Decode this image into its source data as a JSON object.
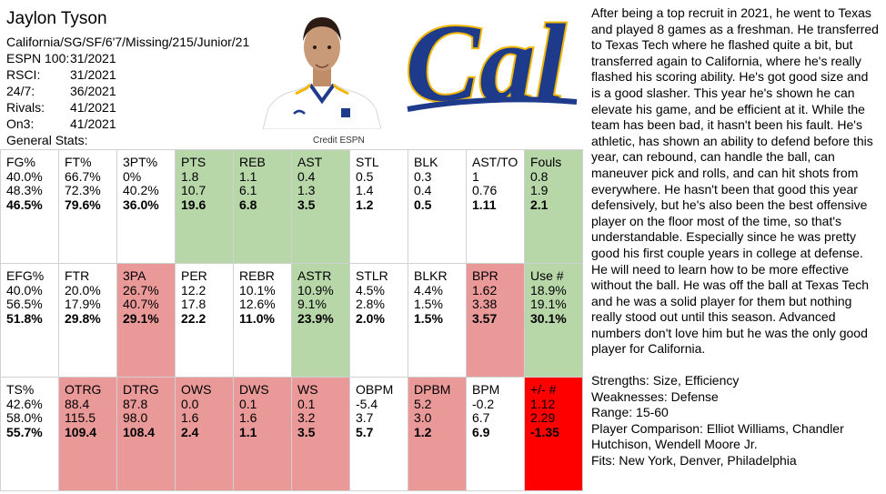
{
  "player": {
    "name": "Jaylon Tyson",
    "info_line": "California/SG/SF/6'7/Missing/215/Junior/21",
    "rankings": [
      {
        "label": "ESPN 100:",
        "value": "31/2021"
      },
      {
        "label": "RSCI:",
        "value": "31/2021"
      },
      {
        "label": "24/7:",
        "value": "36/2021"
      },
      {
        "label": "Rivals:",
        "value": "41/2021"
      },
      {
        "label": "On3:",
        "value": "41/2021"
      }
    ],
    "general_stats_label": "General Stats:",
    "photo_credit": "Credit ESPN"
  },
  "stats": [
    [
      {
        "label": "FG%",
        "values": [
          "40.0%",
          "48.3%",
          "46.5%"
        ],
        "color": "white"
      },
      {
        "label": "FT%",
        "values": [
          "66.7%",
          "72.3%",
          "79.6%"
        ],
        "color": "white"
      },
      {
        "label": "3PT%",
        "values": [
          "0%",
          "40.2%",
          "36.0%"
        ],
        "color": "white"
      },
      {
        "label": "PTS",
        "values": [
          "1.8",
          "10.7",
          "19.6"
        ],
        "color": "green"
      },
      {
        "label": "REB",
        "values": [
          "1.1",
          "6.1",
          "6.8"
        ],
        "color": "green"
      },
      {
        "label": "AST",
        "values": [
          "0.4",
          "1.3",
          "3.5"
        ],
        "color": "green"
      },
      {
        "label": "STL",
        "values": [
          "0.5",
          "1.4",
          "1.2"
        ],
        "color": "white"
      },
      {
        "label": "BLK",
        "values": [
          "0.3",
          "0.4",
          "0.5"
        ],
        "color": "white"
      },
      {
        "label": "AST/TO",
        "values": [
          "1",
          "0.76",
          "1.11"
        ],
        "color": "white"
      },
      {
        "label": "Fouls",
        "values": [
          "0.8",
          "1.9",
          "2.1"
        ],
        "color": "green"
      }
    ],
    [
      {
        "label": "EFG%",
        "values": [
          "40.0%",
          "56.5%",
          "51.8%"
        ],
        "color": "white"
      },
      {
        "label": "FTR",
        "values": [
          "20.0%",
          "17.9%",
          "29.8%"
        ],
        "color": "white"
      },
      {
        "label": "3PA",
        "values": [
          "26.7%",
          "40.7%",
          "29.1%"
        ],
        "color": "red"
      },
      {
        "label": "PER",
        "values": [
          "12.2",
          "17.8",
          "22.2"
        ],
        "color": "white"
      },
      {
        "label": "REBR",
        "values": [
          "10.1%",
          "12.6%",
          "11.0%"
        ],
        "color": "white"
      },
      {
        "label": "ASTR",
        "values": [
          "10.9%",
          "9.1%",
          "23.9%"
        ],
        "color": "green"
      },
      {
        "label": "STLR",
        "values": [
          "4.5%",
          "2.8%",
          "2.0%"
        ],
        "color": "white"
      },
      {
        "label": "BLKR",
        "values": [
          "4.4%",
          "1.5%",
          "1.5%"
        ],
        "color": "white"
      },
      {
        "label": "BPR",
        "values": [
          "1.62",
          "3.38",
          "3.57"
        ],
        "color": "red"
      },
      {
        "label": "Use #",
        "values": [
          "18.9%",
          "19.1%",
          "30.1%"
        ],
        "color": "green"
      }
    ],
    [
      {
        "label": "TS%",
        "values": [
          "42.6%",
          "58.0%",
          "55.7%"
        ],
        "color": "white"
      },
      {
        "label": "OTRG",
        "values": [
          "88.4",
          "115.5",
          "109.4"
        ],
        "color": "red"
      },
      {
        "label": "DTRG",
        "values": [
          "87.8",
          "98.0",
          "108.4"
        ],
        "color": "red"
      },
      {
        "label": "OWS",
        "values": [
          "0.0",
          "1.6",
          "2.4"
        ],
        "color": "red"
      },
      {
        "label": "DWS",
        "values": [
          "0.1",
          "1.6",
          "1.1"
        ],
        "color": "red"
      },
      {
        "label": "WS",
        "values": [
          "0.1",
          "3.2",
          "3.5"
        ],
        "color": "red"
      },
      {
        "label": "OBPM",
        "values": [
          "-5.4",
          "3.7",
          "5.7"
        ],
        "color": "white"
      },
      {
        "label": "DPBM",
        "values": [
          "5.2",
          "3.0",
          "1.2"
        ],
        "color": "red"
      },
      {
        "label": "BPM",
        "values": [
          "-0.2",
          "6.7",
          "6.9"
        ],
        "color": "white"
      },
      {
        "label": "+/- #",
        "values": [
          "1.12",
          "2.29",
          "-1.35"
        ],
        "color": "bright"
      }
    ]
  ],
  "bio": "After being a top recruit in 2021, he went to Texas and played 8 games as a freshman. He transferred to Texas Tech where he flashed quite a bit, but transferred again to California, where he's really flashed his scoring ability. He's got good size and is a good slasher. This year he's shown he can elevate his game, and be efficient at it. While the team has been bad, it hasn't been his fault. He's athletic, has shown an ability to defend before this year, can rebound, can handle the ball, can maneuver pick and rolls, and can hit shots from everywhere. He hasn't been that good this year defensively, but he's also been the best offensive player on the floor most of the time, so that's understandable. Especially since he was pretty good his first couple years in college at defense. He will need to learn how to be more effective without the ball. He was off the ball at Texas Tech and he was a solid player for them but nothing really stood out until this season. Advanced numbers don't love him but he was the only good player for California.",
  "summary": {
    "strengths": "Strengths: Size, Efficiency",
    "weaknesses": "Weaknesses: Defense",
    "range": "Range: 15-60",
    "comparison": "Player Comparison: Elliot Williams, Chandler Hutchison, Wendell Moore Jr.",
    "fits": "Fits: New York, Denver, Philadelphia"
  },
  "logo": {
    "text": "Cal",
    "color": "#1e3a8a",
    "outline": "#f2b705"
  },
  "colors": {
    "green": "#b7d7a8",
    "red": "#ea9999",
    "bright": "#ff0000"
  }
}
